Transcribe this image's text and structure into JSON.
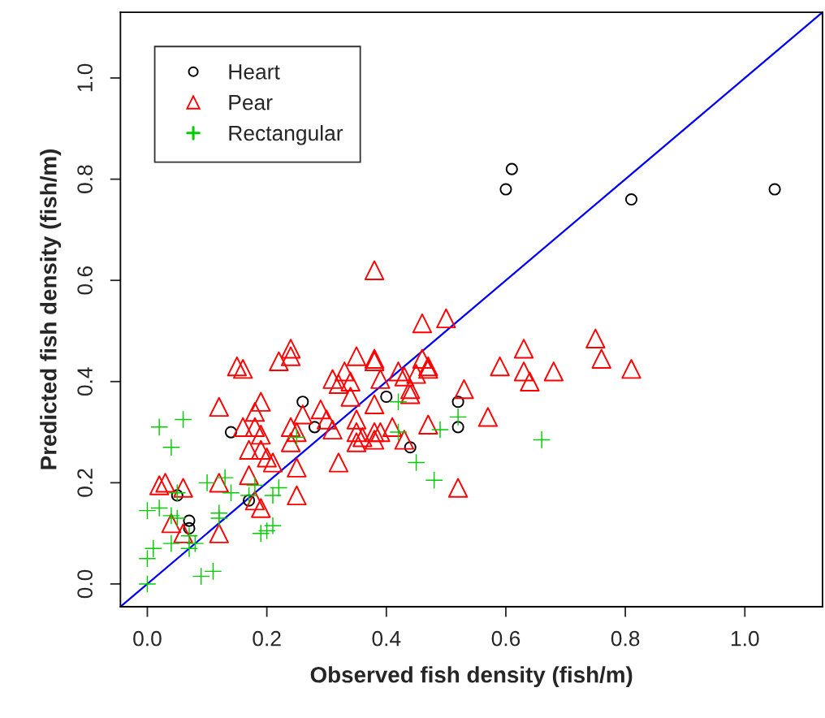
{
  "chart_data": {
    "type": "scatter",
    "xlabel": "Observed fish density (fish/m)",
    "ylabel": "Predicted fish density (fish/m)",
    "xlim": [
      -0.045,
      1.13
    ],
    "ylim": [
      -0.045,
      1.13
    ],
    "xticks": [
      {
        "value": 0,
        "label": "0.0"
      },
      0.2,
      0.4,
      0.6,
      0.8,
      {
        "value": 1,
        "label": "1.0"
      }
    ],
    "yticks": [
      {
        "value": 0,
        "label": "0.0"
      },
      0.2,
      0.4,
      0.6,
      0.8,
      {
        "value": 1,
        "label": "1.0"
      }
    ],
    "grid": false,
    "legend": "top left",
    "series": [
      {
        "name": "Heart",
        "color": "#000000",
        "marker": "circle",
        "x": [
          0.14,
          0.26,
          0.28,
          0.05,
          0.07,
          0.07,
          0.17,
          0.4,
          0.44,
          0.52,
          0.52,
          0.61,
          0.6,
          0.81,
          1.05
        ],
        "values": [
          0.3,
          0.36,
          0.31,
          0.175,
          0.125,
          0.11,
          0.165,
          0.37,
          0.27,
          0.36,
          0.31,
          0.82,
          0.78,
          0.76,
          0.78
        ]
      },
      {
        "name": "Pear",
        "color": "#ff0000",
        "marker": "triangle",
        "x": [
          0.24,
          0.24,
          0.22,
          0.15,
          0.16,
          0.35,
          0.38,
          0.38,
          0.31,
          0.33,
          0.34,
          0.32,
          0.39,
          0.34,
          0.38,
          0.12,
          0.19,
          0.18,
          0.26,
          0.29,
          0.3,
          0.31,
          0.35,
          0.35,
          0.36,
          0.38,
          0.39,
          0.38,
          0.35,
          0.16,
          0.18,
          0.19,
          0.24,
          0.25,
          0.24,
          0.17,
          0.19,
          0.2,
          0.21,
          0.25,
          0.32,
          0.17,
          0.12,
          0.02,
          0.03,
          0.06,
          0.25,
          0.18,
          0.19,
          0.04,
          0.06,
          0.12,
          0.38,
          0.46,
          0.5,
          0.46,
          0.47,
          0.47,
          0.45,
          0.42,
          0.43,
          0.44,
          0.44,
          0.53,
          0.47,
          0.57,
          0.41,
          0.43,
          0.52,
          0.63,
          0.59,
          0.63,
          0.64,
          0.68,
          0.75,
          0.76,
          0.81
        ],
        "values": [
          0.465,
          0.45,
          0.44,
          0.43,
          0.425,
          0.45,
          0.445,
          0.44,
          0.405,
          0.42,
          0.4,
          0.395,
          0.405,
          0.37,
          0.355,
          0.35,
          0.36,
          0.34,
          0.335,
          0.345,
          0.325,
          0.305,
          0.325,
          0.3,
          0.29,
          0.3,
          0.3,
          0.285,
          0.28,
          0.31,
          0.31,
          0.295,
          0.31,
          0.3,
          0.28,
          0.265,
          0.265,
          0.25,
          0.24,
          0.23,
          0.24,
          0.215,
          0.2,
          0.195,
          0.2,
          0.19,
          0.175,
          0.165,
          0.15,
          0.12,
          0.1,
          0.1,
          0.62,
          0.515,
          0.525,
          0.445,
          0.43,
          0.425,
          0.415,
          0.42,
          0.41,
          0.385,
          0.375,
          0.385,
          0.315,
          0.33,
          0.31,
          0.285,
          0.19,
          0.465,
          0.43,
          0.42,
          0.4,
          0.42,
          0.485,
          0.445,
          0.425
        ]
      },
      {
        "name": "Rectangular",
        "color": "#00cc00",
        "marker": "cross",
        "x": [
          0.06,
          0.02,
          0.04,
          0.13,
          0.1,
          0.14,
          0.18,
          0.17,
          0.22,
          0.21,
          0.05,
          0.02,
          0.0,
          0.04,
          0.12,
          0.12,
          0.05,
          0.04,
          0.07,
          0.08,
          0.07,
          0.01,
          0.0,
          0.19,
          0.2,
          0.21,
          0.11,
          0.09,
          0.0,
          0.25,
          0.42,
          0.42,
          0.49,
          0.52,
          0.45,
          0.48,
          0.66
        ],
        "values": [
          0.325,
          0.31,
          0.27,
          0.21,
          0.2,
          0.18,
          0.195,
          0.175,
          0.19,
          0.175,
          0.18,
          0.15,
          0.145,
          0.135,
          0.14,
          0.13,
          0.13,
          0.08,
          0.095,
          0.08,
          0.07,
          0.07,
          0.05,
          0.1,
          0.105,
          0.115,
          0.025,
          0.015,
          0.0,
          0.29,
          0.36,
          0.3,
          0.305,
          0.33,
          0.24,
          0.205,
          0.285
        ]
      },
      {
        "type": "line",
        "color": "#0000ff",
        "x": [
          -0.045,
          1.13
        ],
        "values": [
          -0.045,
          1.13
        ]
      }
    ]
  }
}
